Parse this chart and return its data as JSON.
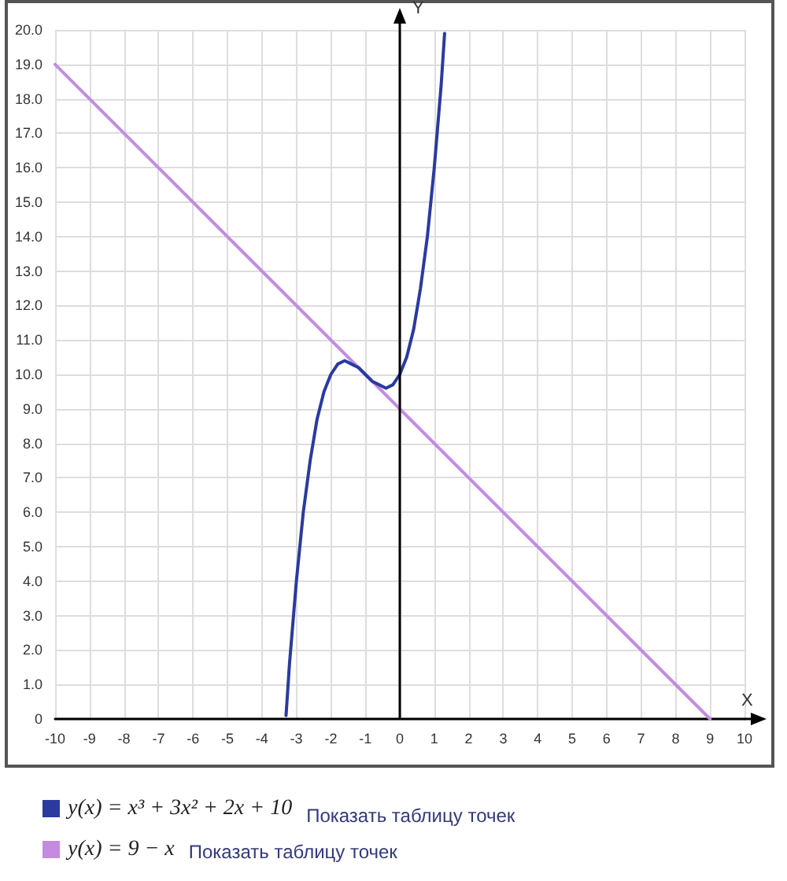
{
  "chart_data": {
    "type": "line",
    "xlabel": "X",
    "ylabel": "Y",
    "xlim": [
      -10,
      10
    ],
    "ylim": [
      0,
      20
    ],
    "xticks": [
      -10,
      -9,
      -8,
      -7,
      -6,
      -5,
      -4,
      -3,
      -2,
      -1,
      0,
      1,
      2,
      3,
      4,
      5,
      6,
      7,
      8,
      9,
      10
    ],
    "yticks": [
      {
        "value": 0,
        "label": "0"
      },
      {
        "value": 1,
        "label": "1.0"
      },
      {
        "value": 2,
        "label": "2.0"
      },
      {
        "value": 3,
        "label": "3.0"
      },
      {
        "value": 4,
        "label": "4.0"
      },
      {
        "value": 5,
        "label": "5.0"
      },
      {
        "value": 6,
        "label": "6.0"
      },
      {
        "value": 7,
        "label": "7.0"
      },
      {
        "value": 8,
        "label": "8.0"
      },
      {
        "value": 9,
        "label": "9.0"
      },
      {
        "value": 10,
        "label": "10.0"
      },
      {
        "value": 11,
        "label": "11.0"
      },
      {
        "value": 12,
        "label": "12.0"
      },
      {
        "value": 13,
        "label": "13.0"
      },
      {
        "value": 14,
        "label": "14.0"
      },
      {
        "value": 15,
        "label": "15.0"
      },
      {
        "value": 16,
        "label": "16.0"
      },
      {
        "value": 17,
        "label": "17.0"
      },
      {
        "value": 18,
        "label": "18.0"
      },
      {
        "value": 19,
        "label": "19.0"
      },
      {
        "value": 20,
        "label": "20.0"
      }
    ],
    "grid": true,
    "legend": "bottom",
    "marker": "none",
    "line_style": "solid",
    "series": [
      {
        "name": "y(x) = x³ + 3x² + 2x + 10",
        "color": "#2a3a9f",
        "x": [
          -3.3,
          -3.2,
          -3.0,
          -2.8,
          -2.6,
          -2.4,
          -2.2,
          -2.0,
          -1.8,
          -1.6,
          -1.4,
          -1.2,
          -1.0,
          -0.8,
          -0.6,
          -0.4,
          -0.2,
          0,
          0.2,
          0.4,
          0.6,
          0.8,
          1.0,
          1.2,
          1.3
        ],
        "values": [
          0.1,
          1.6,
          4.0,
          6.0,
          7.5,
          8.7,
          9.5,
          10.0,
          10.3,
          10.4,
          10.3,
          10.2,
          10.0,
          9.8,
          9.7,
          9.6,
          9.7,
          10.0,
          10.5,
          11.3,
          12.5,
          14.0,
          16.0,
          18.4,
          19.9
        ]
      },
      {
        "name": "y(x) = 9 − x",
        "color": "#c48be0",
        "x": [
          -10,
          9
        ],
        "values": [
          19,
          0
        ]
      }
    ],
    "annotations": [
      "Показать таблицу точек",
      "Показать таблицу точек"
    ]
  }
}
